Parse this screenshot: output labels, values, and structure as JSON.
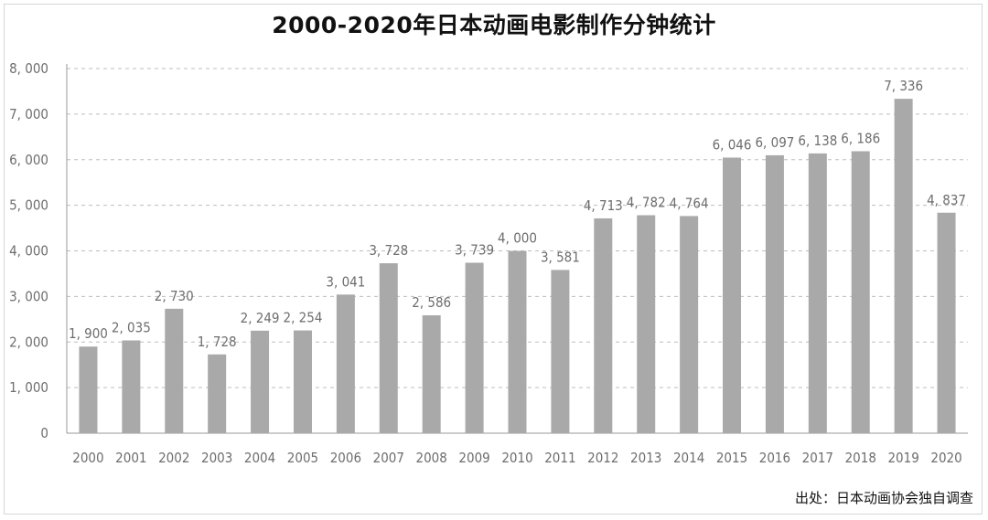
{
  "chart_data": {
    "type": "bar",
    "title": "2000-2020年日本动画电影制作分钟统计",
    "categories": [
      "2000",
      "2001",
      "2002",
      "2003",
      "2004",
      "2005",
      "2006",
      "2007",
      "2008",
      "2009",
      "2010",
      "2011",
      "2012",
      "2013",
      "2014",
      "2015",
      "2016",
      "2017",
      "2018",
      "2019",
      "2020"
    ],
    "values": [
      1900,
      2035,
      2730,
      1728,
      2249,
      2254,
      3041,
      3728,
      2586,
      3739,
      4000,
      3581,
      4713,
      4782,
      4764,
      6046,
      6097,
      6138,
      6186,
      7336,
      4837
    ],
    "value_labels": [
      "1, 900",
      "2, 035",
      "2, 730",
      "1, 728",
      "2, 249",
      "2, 254",
      "3, 041",
      "3, 728",
      "2, 586",
      "3, 739",
      "4, 000",
      "3, 581",
      "4, 713",
      "4, 782",
      "4, 764",
      "6, 046",
      "6, 097",
      "6, 138",
      "6, 186",
      "7, 336",
      "4, 837"
    ],
    "y_ticks": [
      0,
      1000,
      2000,
      3000,
      4000,
      5000,
      6000,
      7000,
      8000
    ],
    "y_tick_labels": [
      "0",
      "1, 000",
      "2, 000",
      "3, 000",
      "4, 000",
      "5, 000",
      "6, 000",
      "7, 000",
      "8, 000"
    ],
    "ylim": [
      0,
      8000
    ],
    "xlabel": "",
    "ylabel": "",
    "grid": "horizontal dashed",
    "bar_color": "#a9a9a9",
    "grid_color": "#bdbdbd",
    "source": "出处：日本动画协会独自调查"
  }
}
